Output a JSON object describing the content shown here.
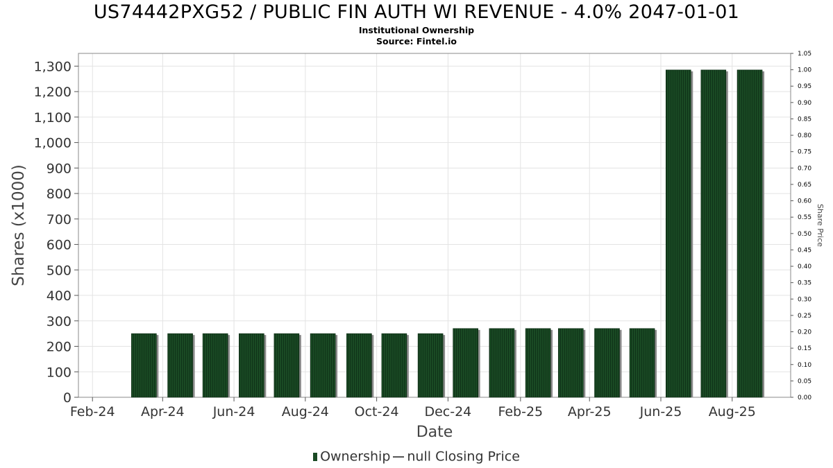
{
  "chart_data": {
    "type": "bar",
    "title": "US74442PXG52 / PUBLIC FIN AUTH WI REVENUE - 4.0% 2047-01-01",
    "subtitle": "Institutional Ownership",
    "source": "Source: Fintel.io",
    "xlabel": "Date",
    "ylabel": "Shares (x1000)",
    "y2label": "Share Price",
    "x_range": [
      "2024-01-20",
      "2025-09-20"
    ],
    "ylim": [
      0,
      1350
    ],
    "y2lim": [
      0,
      1.05
    ],
    "y_ticks": [
      0,
      100,
      200,
      300,
      400,
      500,
      600,
      700,
      800,
      900,
      1000,
      1100,
      1200,
      1300
    ],
    "y_tick_labels": [
      "0",
      "100",
      "200",
      "300",
      "400",
      "500",
      "600",
      "700",
      "800",
      "900",
      "1,000",
      "1,100",
      "1,200",
      "1,300"
    ],
    "y2_ticks": [
      0,
      0.05,
      0.1,
      0.15,
      0.2,
      0.25,
      0.3,
      0.35,
      0.4,
      0.45,
      0.5,
      0.55,
      0.6,
      0.65,
      0.7,
      0.75,
      0.8,
      0.85,
      0.9,
      0.95,
      1.0,
      1.05
    ],
    "y2_tick_labels": [
      "0.00",
      "0.05",
      "0.10",
      "0.15",
      "0.20",
      "0.25",
      "0.30",
      "0.35",
      "0.40",
      "0.45",
      "0.50",
      "0.55",
      "0.60",
      "0.65",
      "0.70",
      "0.75",
      "0.80",
      "0.85",
      "0.90",
      "0.95",
      "1.00",
      "1.05"
    ],
    "x_ticks": [
      "2024-02-01",
      "2024-04-01",
      "2024-06-01",
      "2024-08-01",
      "2024-10-01",
      "2024-12-01",
      "2025-02-01",
      "2025-04-01",
      "2025-06-01",
      "2025-08-01"
    ],
    "x_tick_labels": [
      "Feb-24",
      "Apr-24",
      "Jun-24",
      "Aug-24",
      "Oct-24",
      "Dec-24",
      "Feb-25",
      "Apr-25",
      "Jun-25",
      "Aug-25"
    ],
    "grid": true,
    "legend_position": "bottom",
    "series": [
      {
        "name": "Ownership",
        "color": "#1a4a24",
        "points": [
          {
            "x": "2024-03-16",
            "y": 250
          },
          {
            "x": "2024-04-16",
            "y": 250
          },
          {
            "x": "2024-05-16",
            "y": 250
          },
          {
            "x": "2024-06-16",
            "y": 250
          },
          {
            "x": "2024-07-16",
            "y": 250
          },
          {
            "x": "2024-08-16",
            "y": 250
          },
          {
            "x": "2024-09-16",
            "y": 250
          },
          {
            "x": "2024-10-16",
            "y": 250
          },
          {
            "x": "2024-11-16",
            "y": 250
          },
          {
            "x": "2024-12-16",
            "y": 270
          },
          {
            "x": "2025-01-16",
            "y": 270
          },
          {
            "x": "2025-02-16",
            "y": 270
          },
          {
            "x": "2025-03-16",
            "y": 270
          },
          {
            "x": "2025-04-16",
            "y": 270
          },
          {
            "x": "2025-05-16",
            "y": 270
          },
          {
            "x": "2025-06-16",
            "y": 1285
          },
          {
            "x": "2025-07-16",
            "y": 1285
          },
          {
            "x": "2025-08-16",
            "y": 1285
          }
        ]
      }
    ],
    "legend": {
      "bar_label": "Ownership",
      "line_label": "null Closing Price"
    }
  }
}
